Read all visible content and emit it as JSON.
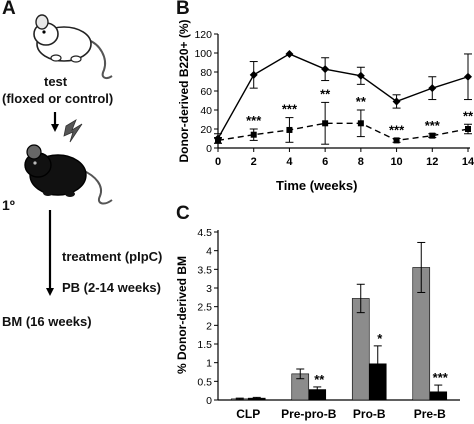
{
  "panels": {
    "a": {
      "letter": "A",
      "test_label": "test",
      "test_sublabel": "(floxed or control)",
      "recipient_label": "1º",
      "steps": [
        "treatment (pIpC)",
        "PB (2-14 weeks)",
        "BM (16 weeks)"
      ]
    },
    "b": {
      "letter": "B"
    },
    "c": {
      "letter": "C"
    }
  },
  "chart_data": [
    {
      "type": "line",
      "xlabel": "Time (weeks)",
      "ylabel": "Donor-derived B220+ (%)",
      "xlim": [
        0,
        14
      ],
      "ylim": [
        0,
        120
      ],
      "xticks": [
        0,
        2,
        4,
        6,
        8,
        10,
        12,
        14
      ],
      "yticks": [
        0,
        20,
        40,
        60,
        80,
        100,
        120
      ],
      "x": [
        0,
        2,
        4,
        6,
        8,
        10,
        12,
        14
      ],
      "series": [
        {
          "style": "solid",
          "marker": "diamond",
          "values": [
            10,
            77,
            99,
            83,
            76,
            49,
            63,
            75
          ],
          "error": [
            5,
            14,
            0,
            12,
            9,
            7,
            12,
            24
          ]
        },
        {
          "style": "dashed",
          "marker": "square",
          "values": [
            8,
            14,
            19,
            26,
            26,
            8,
            13,
            20
          ],
          "error": [
            3,
            6,
            13,
            22,
            14,
            2,
            2,
            5
          ]
        }
      ],
      "annotations": [
        {
          "x": 2,
          "text": "***"
        },
        {
          "x": 4,
          "text": "***"
        },
        {
          "x": 6,
          "text": "**"
        },
        {
          "x": 8,
          "text": "**"
        },
        {
          "x": 10,
          "text": "***"
        },
        {
          "x": 12,
          "text": "***"
        },
        {
          "x": 14,
          "text": "**"
        }
      ],
      "grid": false,
      "legend": "none"
    },
    {
      "type": "bar",
      "ylabel": "% Donor-derived BM",
      "ylim": [
        0,
        4.5
      ],
      "yticks": [
        0,
        0.5,
        1,
        1.5,
        2,
        2.5,
        3,
        3.5,
        4,
        4.5
      ],
      "categories": [
        "CLP",
        "Pre-pro-B",
        "Pro-B",
        "Pre-B"
      ],
      "series": [
        {
          "color": "#8c8c8c",
          "values": [
            0.03,
            0.7,
            2.72,
            3.55
          ],
          "error": [
            0.02,
            0.13,
            0.38,
            0.67
          ]
        },
        {
          "color": "#000000",
          "values": [
            0.05,
            0.28,
            0.97,
            0.22
          ],
          "error": [
            0.02,
            0.07,
            0.48,
            0.18
          ]
        }
      ],
      "annotations": [
        {
          "category": "Pre-pro-B",
          "text": "**"
        },
        {
          "category": "Pro-B",
          "text": "*"
        },
        {
          "category": "Pre-B",
          "text": "***"
        }
      ],
      "grid": false,
      "legend": "none"
    }
  ]
}
